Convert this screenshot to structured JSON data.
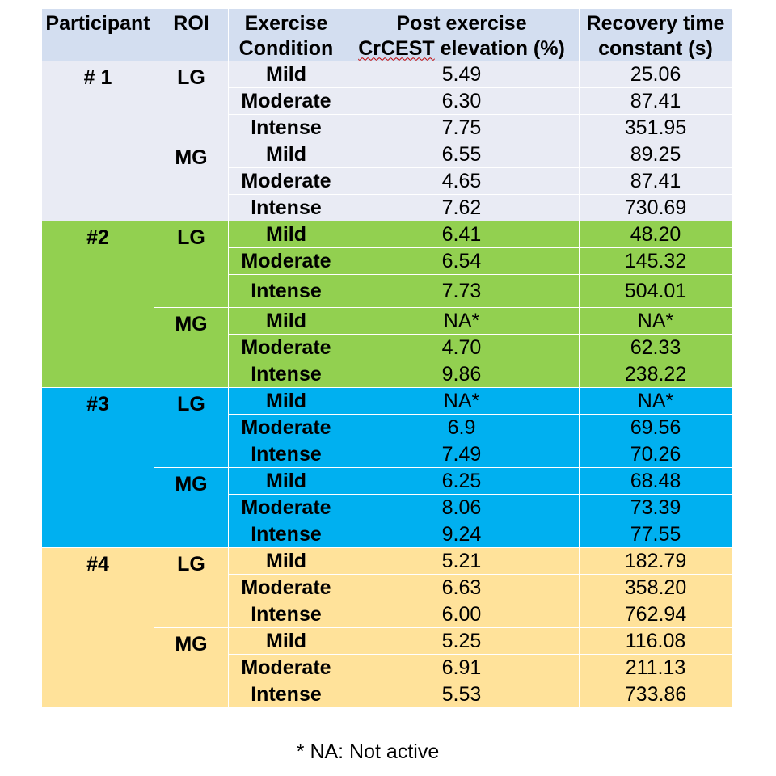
{
  "header": {
    "participant": "Participant",
    "roi": "ROI",
    "condition_line1": "Exercise",
    "condition_line2": "Condition",
    "elevation_line1": "Post exercise",
    "elevation_line2_term": "CrCEST",
    "elevation_line2_rest": " elevation (%)",
    "recovery_line1": "Recovery time",
    "recovery_line2": "constant (s)"
  },
  "participants": [
    {
      "label": "# 1",
      "background": "#e9ebf4",
      "rois": [
        {
          "label": "LG",
          "rows": [
            {
              "condition": "Mild",
              "elevation": "5.49",
              "recovery": "25.06"
            },
            {
              "condition": "Moderate",
              "elevation": "6.30",
              "recovery": "87.41"
            },
            {
              "condition": "Intense",
              "elevation": "7.75",
              "recovery": "351.95"
            }
          ]
        },
        {
          "label": "MG",
          "rows": [
            {
              "condition": "Mild",
              "elevation": "6.55",
              "recovery": "89.25"
            },
            {
              "condition": "Moderate",
              "elevation": "4.65",
              "recovery": "87.41"
            },
            {
              "condition": "Intense",
              "elevation": "7.62",
              "recovery": "730.69"
            }
          ]
        }
      ]
    },
    {
      "label": "#2",
      "background": "#92d050",
      "rois": [
        {
          "label": "LG",
          "rows": [
            {
              "condition": "Mild",
              "elevation": "6.41",
              "recovery": "48.20"
            },
            {
              "condition": "Moderate",
              "elevation": "6.54",
              "recovery": "145.32"
            },
            {
              "condition": "Intense",
              "elevation": "7.73",
              "recovery": "504.01"
            }
          ]
        },
        {
          "label": "MG",
          "rows": [
            {
              "condition": "Mild",
              "elevation": "NA*",
              "recovery": "NA*"
            },
            {
              "condition": "Moderate",
              "elevation": "4.70",
              "recovery": "62.33"
            },
            {
              "condition": "Intense",
              "elevation": "9.86",
              "recovery": "238.22"
            }
          ]
        }
      ]
    },
    {
      "label": "#3",
      "background": "#00b0f0",
      "rois": [
        {
          "label": "LG",
          "rows": [
            {
              "condition": "Mild",
              "elevation": "NA*",
              "recovery": "NA*"
            },
            {
              "condition": "Moderate",
              "elevation": "6.9",
              "recovery": "69.56"
            },
            {
              "condition": "Intense",
              "elevation": "7.49",
              "recovery": "70.26"
            }
          ]
        },
        {
          "label": "MG",
          "rows": [
            {
              "condition": "Mild",
              "elevation": "6.25",
              "recovery": "68.48"
            },
            {
              "condition": "Moderate",
              "elevation": "8.06",
              "recovery": "73.39"
            },
            {
              "condition": "Intense",
              "elevation": "9.24",
              "recovery": "77.55"
            }
          ]
        }
      ]
    },
    {
      "label": "#4",
      "background": "#ffe29a",
      "rois": [
        {
          "label": "LG",
          "rows": [
            {
              "condition": "Mild",
              "elevation": "5.21",
              "recovery": "182.79"
            },
            {
              "condition": "Moderate",
              "elevation": "6.63",
              "recovery": "358.20"
            },
            {
              "condition": "Intense",
              "elevation": "6.00",
              "recovery": "762.94"
            }
          ]
        },
        {
          "label": "MG",
          "rows": [
            {
              "condition": "Mild",
              "elevation": "5.25",
              "recovery": "116.08"
            },
            {
              "condition": "Moderate",
              "elevation": "6.91",
              "recovery": "211.13"
            },
            {
              "condition": "Intense",
              "elevation": "5.53",
              "recovery": "733.86"
            }
          ]
        }
      ]
    }
  ],
  "footnote": "* NA: Not active"
}
